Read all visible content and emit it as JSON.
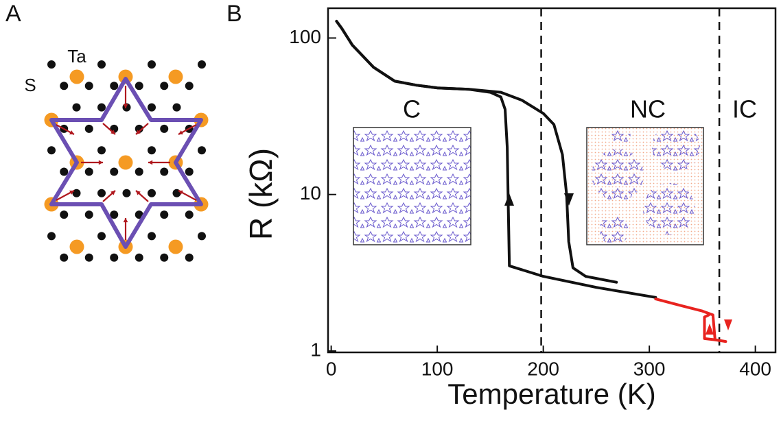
{
  "panel_a": {
    "label": "A",
    "ta_label": "Ta",
    "s_label": "S"
  },
  "chart_data": {
    "type": "line",
    "panel_label": "B",
    "x_label": "Temperature (K)",
    "y_label": "R (kΩ)",
    "xlim": [
      -3,
      419
    ],
    "xticks": [
      0,
      100,
      200,
      300,
      400
    ],
    "ylim": [
      0.98,
      155
    ],
    "yticks": [
      1,
      10,
      100
    ],
    "log_y": true,
    "vlines": [
      198,
      366
    ],
    "annotations": [
      "C",
      "NC",
      "IC"
    ],
    "series": [
      {
        "color": "#111111",
        "x": [
          306,
          250,
          200,
          168,
          167,
          166,
          164,
          160,
          150,
          130,
          100,
          80,
          60,
          40,
          20,
          10,
          5
        ],
        "y": [
          2.2,
          2.55,
          3.0,
          3.5,
          8,
          20,
          35,
          42,
          45,
          47,
          48,
          50,
          53,
          65,
          90,
          115,
          128
        ]
      },
      {
        "color": "#111111",
        "x": [
          5,
          10,
          20,
          40,
          60,
          80,
          100,
          130,
          160,
          180,
          200,
          210,
          218,
          222,
          224,
          228,
          240,
          269
        ],
        "y": [
          128,
          115,
          90,
          65,
          53,
          50,
          48,
          47,
          45,
          40,
          33,
          28,
          18,
          10,
          5,
          3.4,
          3.0,
          2.75
        ]
      },
      {
        "color": "#e8231f",
        "x": [
          306,
          330,
          350,
          360,
          362,
          372
        ],
        "y": [
          2.15,
          1.95,
          1.8,
          1.7,
          1.18,
          1.15
        ]
      },
      {
        "color": "#e8231f",
        "x": [
          362,
          352,
          352,
          356
        ],
        "y": [
          1.18,
          1.2,
          1.65,
          1.7
        ]
      }
    ]
  }
}
